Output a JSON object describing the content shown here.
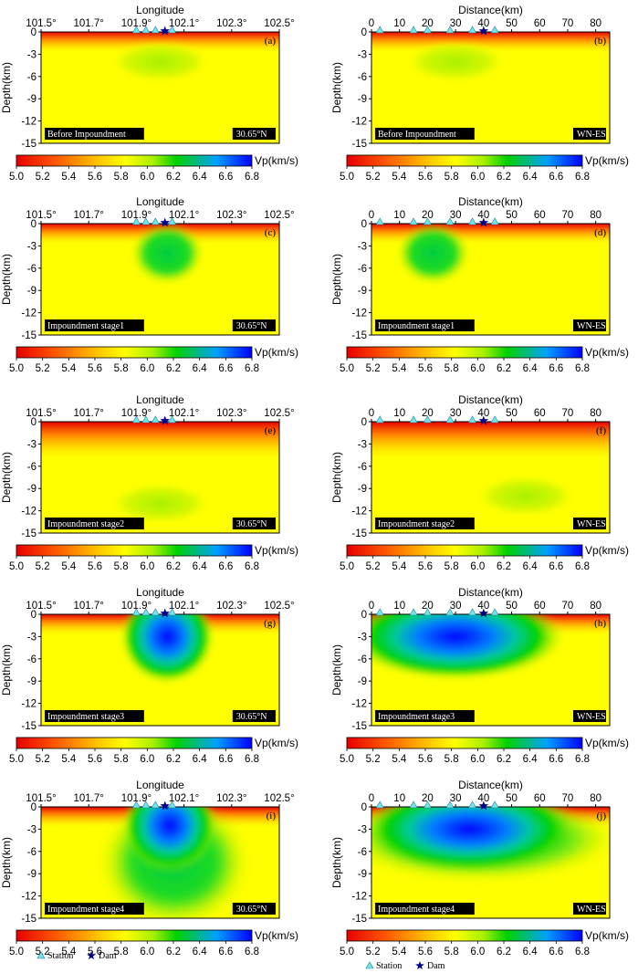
{
  "chart_data": [
    {
      "type": "heatmap",
      "panel_id": "(a)",
      "axis": "longitude",
      "xlabel": "Longitude",
      "ylabel": "Depth(km)",
      "x_ticks": [
        "101.5°",
        "101.7°",
        "101.9°",
        "102.1°",
        "102.3°",
        "102.5°"
      ],
      "y_ticks": [
        "0",
        "-3",
        "-6",
        "-9",
        "-12",
        "-15"
      ],
      "xlim": [
        101.5,
        102.5
      ],
      "ylim": [
        -15,
        0
      ],
      "stage": "Before Impoundment",
      "profile": "30.65°N",
      "stations": [
        101.9,
        101.94,
        101.98,
        102.05
      ],
      "dam": 102.02,
      "anomalies": [
        {
          "x": 102.0,
          "depth": -4.0,
          "vp": 5.9
        }
      ],
      "grid": false
    },
    {
      "type": "heatmap",
      "panel_id": "(b)",
      "axis": "distance",
      "xlabel": "Distance(km)",
      "ylabel": "Depth(km)",
      "x_ticks": [
        "0",
        "10",
        "20",
        "30",
        "40",
        "50",
        "60",
        "70",
        "80"
      ],
      "y_ticks": [
        "0",
        "-3",
        "-6",
        "-9",
        "-12",
        "-15"
      ],
      "xlim": [
        0,
        85
      ],
      "ylim": [
        -15,
        0
      ],
      "stage": "Before Impoundment",
      "profile": "WN-ES",
      "stations": [
        3,
        15,
        20,
        28,
        36,
        44
      ],
      "dam": 40,
      "anomalies": [
        {
          "x": 30,
          "depth": -4.0,
          "vp": 5.9
        }
      ],
      "grid": false
    },
    {
      "type": "heatmap",
      "panel_id": "(c)",
      "axis": "longitude",
      "xlabel": "Longitude",
      "ylabel": "Depth(km)",
      "x_ticks": [
        "101.5°",
        "101.7°",
        "101.9°",
        "102.1°",
        "102.3°",
        "102.5°"
      ],
      "y_ticks": [
        "0",
        "-3",
        "-6",
        "-9",
        "-12",
        "-15"
      ],
      "xlim": [
        101.5,
        102.5
      ],
      "ylim": [
        -15,
        0
      ],
      "stage": "Impoundment stage1",
      "profile": "30.65°N",
      "stations": [
        101.9,
        101.94,
        101.98,
        102.05
      ],
      "dam": 102.02,
      "anomalies": [
        {
          "x": 102.03,
          "depth": -4.0,
          "vp": 6.2
        }
      ],
      "grid": false
    },
    {
      "type": "heatmap",
      "panel_id": "(d)",
      "axis": "distance",
      "xlabel": "Distance(km)",
      "ylabel": "Depth(km)",
      "x_ticks": [
        "0",
        "10",
        "20",
        "30",
        "40",
        "50",
        "60",
        "70",
        "80"
      ],
      "y_ticks": [
        "0",
        "-3",
        "-6",
        "-9",
        "-12",
        "-15"
      ],
      "xlim": [
        0,
        85
      ],
      "ylim": [
        -15,
        0
      ],
      "stage": "Impoundment stage1",
      "profile": "WN-ES",
      "stations": [
        3,
        15,
        20,
        28,
        36,
        44
      ],
      "dam": 40,
      "anomalies": [
        {
          "x": 22,
          "depth": -4.0,
          "vp": 6.2
        }
      ],
      "grid": false
    },
    {
      "type": "heatmap",
      "panel_id": "(e)",
      "axis": "longitude",
      "xlabel": "Longitude",
      "ylabel": "Depth(km)",
      "x_ticks": [
        "101.5°",
        "101.7°",
        "101.9°",
        "102.1°",
        "102.3°",
        "102.5°"
      ],
      "y_ticks": [
        "0",
        "-3",
        "-6",
        "-9",
        "-12",
        "-15"
      ],
      "xlim": [
        101.5,
        102.5
      ],
      "ylim": [
        -15,
        0
      ],
      "stage": "Impoundment stage2",
      "profile": "30.65°N",
      "stations": [
        101.9,
        101.94,
        101.98,
        102.05
      ],
      "dam": 102.02,
      "anomalies": [
        {
          "x": 102.0,
          "depth": -11.0,
          "vp": 5.85
        }
      ],
      "grid": false
    },
    {
      "type": "heatmap",
      "panel_id": "(f)",
      "axis": "distance",
      "xlabel": "Distance(km)",
      "ylabel": "Depth(km)",
      "x_ticks": [
        "0",
        "10",
        "20",
        "30",
        "40",
        "50",
        "60",
        "70",
        "80"
      ],
      "y_ticks": [
        "0",
        "-3",
        "-6",
        "-9",
        "-12",
        "-15"
      ],
      "xlim": [
        0,
        85
      ],
      "ylim": [
        -15,
        0
      ],
      "stage": "Impoundment stage2",
      "profile": "WN-ES",
      "stations": [
        3,
        15,
        20,
        28,
        36,
        44
      ],
      "dam": 40,
      "anomalies": [
        {
          "x": 55,
          "depth": -10.0,
          "vp": 5.95
        }
      ],
      "grid": false
    },
    {
      "type": "heatmap",
      "panel_id": "(g)",
      "axis": "longitude",
      "xlabel": "Longitude",
      "ylabel": "Depth(km)",
      "x_ticks": [
        "101.5°",
        "101.7°",
        "101.9°",
        "102.1°",
        "102.3°",
        "102.5°"
      ],
      "y_ticks": [
        "0",
        "-3",
        "-6",
        "-9",
        "-12",
        "-15"
      ],
      "xlim": [
        101.5,
        102.5
      ],
      "ylim": [
        -15,
        0
      ],
      "stage": "Impoundment stage3",
      "profile": "30.65°N",
      "stations": [
        101.9,
        101.94,
        101.98,
        102.05
      ],
      "dam": 102.02,
      "anomalies": [
        {
          "x": 102.03,
          "depth": -3.0,
          "vp": 6.5
        }
      ],
      "grid": false
    },
    {
      "type": "heatmap",
      "panel_id": "(h)",
      "axis": "distance",
      "xlabel": "Distance(km)",
      "ylabel": "Depth(km)",
      "x_ticks": [
        "0",
        "10",
        "20",
        "30",
        "40",
        "50",
        "60",
        "70",
        "80"
      ],
      "y_ticks": [
        "0",
        "-3",
        "-6",
        "-9",
        "-12",
        "-15"
      ],
      "xlim": [
        0,
        85
      ],
      "ylim": [
        -15,
        0
      ],
      "stage": "Impoundment stage3",
      "profile": "WN-ES",
      "stations": [
        3,
        15,
        20,
        28,
        36,
        44
      ],
      "dam": 40,
      "anomalies": [
        {
          "x": 30,
          "depth": -3.0,
          "vp": 6.45
        }
      ],
      "grid": false
    },
    {
      "type": "heatmap",
      "panel_id": "(i)",
      "axis": "longitude",
      "xlabel": "Longitude",
      "ylabel": "Depth(km)",
      "x_ticks": [
        "101.5°",
        "101.7°",
        "101.9°",
        "102.1°",
        "102.3°",
        "102.5°"
      ],
      "y_ticks": [
        "0",
        "-3",
        "-6",
        "-9",
        "-12",
        "-15"
      ],
      "xlim": [
        101.5,
        102.5
      ],
      "ylim": [
        -15,
        0
      ],
      "stage": "Impoundment stage4",
      "profile": "30.65°N",
      "stations": [
        101.9,
        101.94,
        101.98,
        102.05
      ],
      "dam": 102.02,
      "anomalies": [
        {
          "x": 102.04,
          "depth": -2.5,
          "vp": 6.6
        }
      ],
      "grid": false
    },
    {
      "type": "heatmap",
      "panel_id": "(j)",
      "axis": "distance",
      "xlabel": "Distance(km)",
      "ylabel": "Depth(km)",
      "x_ticks": [
        "0",
        "10",
        "20",
        "30",
        "40",
        "50",
        "60",
        "70",
        "80"
      ],
      "y_ticks": [
        "0",
        "-3",
        "-6",
        "-9",
        "-12",
        "-15"
      ],
      "xlim": [
        0,
        85
      ],
      "ylim": [
        -15,
        0
      ],
      "stage": "Impoundment stage4",
      "profile": "WN-ES",
      "stations": [
        3,
        15,
        20,
        28,
        36,
        44
      ],
      "dam": 40,
      "anomalies": [
        {
          "x": 35,
          "depth": -3.0,
          "vp": 6.35
        }
      ],
      "grid": false
    }
  ],
  "colorbar": {
    "label": "Vp(km/s)",
    "ticks": [
      "5.0",
      "5.2",
      "5.4",
      "5.6",
      "5.8",
      "6.0",
      "6.2",
      "6.4",
      "6.6",
      "6.8"
    ],
    "range": [
      5.0,
      6.8
    ],
    "colors": [
      "#e60000",
      "#ff5a00",
      "#ffb400",
      "#ffff00",
      "#b8ff00",
      "#00dd00",
      "#00a8ff",
      "#0000ff"
    ]
  },
  "legend": {
    "station_label": "Station",
    "dam_label": "Dam",
    "station_color": "#6fe7e7",
    "dam_color": "#00008b"
  }
}
